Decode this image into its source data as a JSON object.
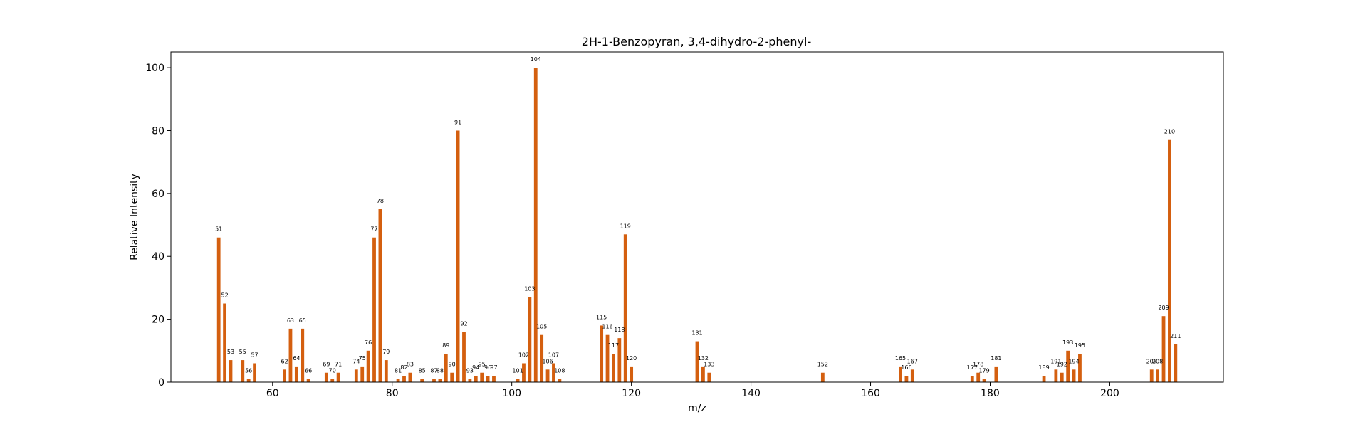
{
  "chart_data": {
    "type": "bar",
    "title": "2H-1-Benzopyran, 3,4-dihydro-2-phenyl-",
    "xlabel": "m/z",
    "ylabel": "Relative Intensity",
    "xlim": [
      43,
      219
    ],
    "ylim": [
      0,
      105
    ],
    "xticks": [
      60,
      80,
      100,
      120,
      140,
      160,
      180,
      200
    ],
    "yticks": [
      0,
      20,
      40,
      60,
      80,
      100
    ],
    "grid": false,
    "bar_color": "#d45f0f",
    "points": [
      {
        "x": 51,
        "y": 46
      },
      {
        "x": 52,
        "y": 25
      },
      {
        "x": 53,
        "y": 7
      },
      {
        "x": 55,
        "y": 7
      },
      {
        "x": 56,
        "y": 1
      },
      {
        "x": 57,
        "y": 6
      },
      {
        "x": 62,
        "y": 4
      },
      {
        "x": 63,
        "y": 17
      },
      {
        "x": 64,
        "y": 5
      },
      {
        "x": 65,
        "y": 17
      },
      {
        "x": 66,
        "y": 1
      },
      {
        "x": 69,
        "y": 3
      },
      {
        "x": 70,
        "y": 1
      },
      {
        "x": 71,
        "y": 3
      },
      {
        "x": 74,
        "y": 4
      },
      {
        "x": 75,
        "y": 5
      },
      {
        "x": 76,
        "y": 10
      },
      {
        "x": 77,
        "y": 46
      },
      {
        "x": 78,
        "y": 55
      },
      {
        "x": 79,
        "y": 7
      },
      {
        "x": 81,
        "y": 1
      },
      {
        "x": 82,
        "y": 2
      },
      {
        "x": 83,
        "y": 3
      },
      {
        "x": 85,
        "y": 1
      },
      {
        "x": 87,
        "y": 1
      },
      {
        "x": 88,
        "y": 1
      },
      {
        "x": 89,
        "y": 9
      },
      {
        "x": 90,
        "y": 3
      },
      {
        "x": 91,
        "y": 80
      },
      {
        "x": 92,
        "y": 16
      },
      {
        "x": 93,
        "y": 1
      },
      {
        "x": 94,
        "y": 2
      },
      {
        "x": 95,
        "y": 3
      },
      {
        "x": 96,
        "y": 2
      },
      {
        "x": 97,
        "y": 2
      },
      {
        "x": 101,
        "y": 1
      },
      {
        "x": 102,
        "y": 6
      },
      {
        "x": 103,
        "y": 27
      },
      {
        "x": 104,
        "y": 100
      },
      {
        "x": 105,
        "y": 15
      },
      {
        "x": 106,
        "y": 4
      },
      {
        "x": 107,
        "y": 6
      },
      {
        "x": 108,
        "y": 1
      },
      {
        "x": 115,
        "y": 18
      },
      {
        "x": 116,
        "y": 15
      },
      {
        "x": 117,
        "y": 9
      },
      {
        "x": 118,
        "y": 14
      },
      {
        "x": 119,
        "y": 47
      },
      {
        "x": 120,
        "y": 5
      },
      {
        "x": 131,
        "y": 13
      },
      {
        "x": 132,
        "y": 5
      },
      {
        "x": 133,
        "y": 3
      },
      {
        "x": 152,
        "y": 3
      },
      {
        "x": 165,
        "y": 5
      },
      {
        "x": 166,
        "y": 2
      },
      {
        "x": 167,
        "y": 4
      },
      {
        "x": 177,
        "y": 2
      },
      {
        "x": 178,
        "y": 3
      },
      {
        "x": 179,
        "y": 1
      },
      {
        "x": 181,
        "y": 5
      },
      {
        "x": 189,
        "y": 2
      },
      {
        "x": 191,
        "y": 4
      },
      {
        "x": 192,
        "y": 3
      },
      {
        "x": 193,
        "y": 10
      },
      {
        "x": 194,
        "y": 4
      },
      {
        "x": 195,
        "y": 9
      },
      {
        "x": 207,
        "y": 4
      },
      {
        "x": 208,
        "y": 4
      },
      {
        "x": 209,
        "y": 21
      },
      {
        "x": 210,
        "y": 77
      },
      {
        "x": 211,
        "y": 12
      }
    ]
  }
}
